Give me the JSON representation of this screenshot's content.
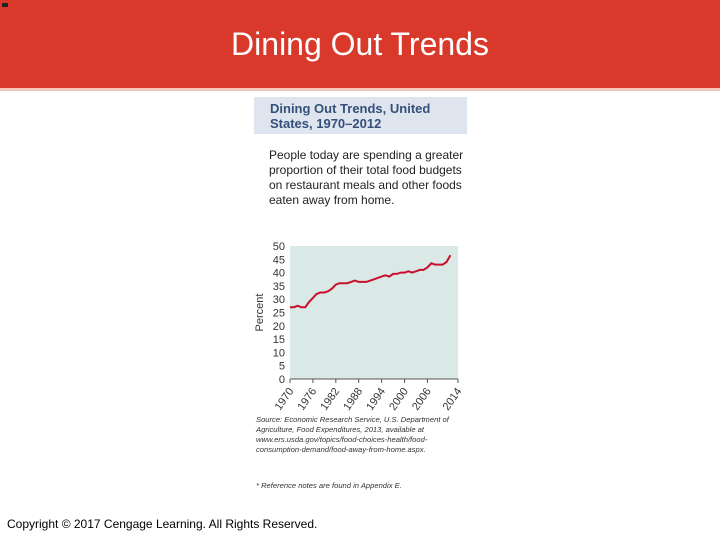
{
  "slide": {
    "title": "Dining Out Trends",
    "copyright": "Copyright © 2017 Cengage Learning. All Rights Reserved."
  },
  "figure": {
    "description": "People today are spending a greater proportion of their total food budgets on restaurant meals and other foods eaten away from home.",
    "source": "Source: Economic Research Service, U.S. Department of Agriculture, Food Expenditures, 2013, available at www.ers.usda.gov/topics/food-choices-health/food-consumption-demand/food-away-from-home.aspx.",
    "footnote": "* Reference notes are found in Appendix E."
  },
  "colors": {
    "header": "#d9392b",
    "plot_background": "#dbe9e6",
    "line": "#c8102e",
    "figure_title": "#34507a"
  },
  "chart_data": {
    "type": "line",
    "title": "Dining Out Trends, United States, 1970–2012",
    "xlabel": "",
    "ylabel": "Percent",
    "xlim": [
      1970,
      2014
    ],
    "ylim": [
      0,
      50
    ],
    "x_ticks": [
      "1970",
      "1976",
      "1982",
      "1988",
      "1994",
      "2000",
      "2006",
      "2014"
    ],
    "y_ticks": [
      "0",
      "5",
      "10",
      "15",
      "20",
      "25",
      "30",
      "35",
      "40",
      "45",
      "50"
    ],
    "grid": false,
    "legend": "none",
    "series": [
      {
        "x": [
          1970,
          1971,
          1972,
          1973,
          1974,
          1975,
          1976,
          1977,
          1978,
          1979,
          1980,
          1981,
          1982,
          1983,
          1984,
          1985,
          1986,
          1987,
          1988,
          1989,
          1990,
          1991,
          1992,
          1993,
          1994,
          1995,
          1996,
          1997,
          1998,
          1999,
          2000,
          2001,
          2002,
          2003,
          2004,
          2005,
          2006,
          2007,
          2008,
          2009,
          2010,
          2011,
          2012
        ],
        "values": [
          27,
          27,
          27.5,
          27,
          27,
          29,
          30.5,
          32,
          32.5,
          32.5,
          33,
          34,
          35.5,
          36,
          36,
          36,
          36.5,
          37,
          36.5,
          36.5,
          36.5,
          37,
          37.5,
          38,
          38.5,
          39,
          38.5,
          39.5,
          39.5,
          40,
          40,
          40.5,
          40,
          40.5,
          41,
          41,
          42,
          43.5,
          43,
          43,
          43,
          44,
          46.5
        ]
      }
    ]
  }
}
